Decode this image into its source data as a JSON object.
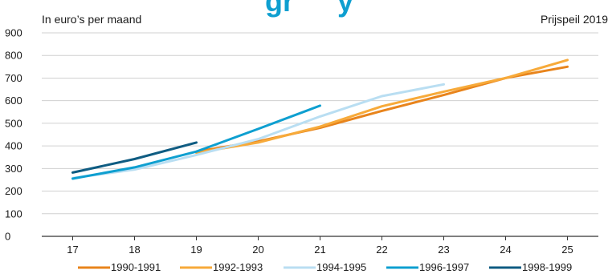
{
  "chart_data": {
    "type": "line",
    "subtitle_left": "In euro’s per maand",
    "subtitle_right": "Prijspeil 2019",
    "x_ticks": [
      17,
      18,
      19,
      20,
      21,
      22,
      23,
      24,
      25
    ],
    "y_ticks": [
      0,
      100,
      200,
      300,
      400,
      500,
      600,
      700,
      800,
      900
    ],
    "xlim": [
      16.5,
      25.5
    ],
    "ylim": [
      0,
      900
    ],
    "grid": "horizontal",
    "legend_position": "bottom",
    "series": [
      {
        "name": "1990-1991",
        "color": "#e8841c",
        "x": [
          19,
          20,
          21,
          22,
          23,
          24,
          25
        ],
        "y": [
          375,
          420,
          480,
          555,
          625,
          700,
          750
        ]
      },
      {
        "name": "1992-1993",
        "color": "#f7aa3a",
        "x": [
          19,
          20,
          21,
          22,
          23,
          24,
          25
        ],
        "y": [
          370,
          415,
          485,
          575,
          640,
          700,
          780
        ]
      },
      {
        "name": "1994-1995",
        "color": "#b9def2",
        "x": [
          17,
          18,
          19,
          20,
          21,
          22,
          23
        ],
        "y": [
          258,
          295,
          360,
          430,
          530,
          620,
          672
        ]
      },
      {
        "name": "1996-1997",
        "color": "#0e9fd0",
        "x": [
          17,
          18,
          19,
          20,
          21
        ],
        "y": [
          255,
          305,
          375,
          475,
          578
        ]
      },
      {
        "name": "1998-1999",
        "color": "#0f5c82",
        "x": [
          17,
          18,
          19
        ],
        "y": [
          282,
          342,
          415
        ]
      }
    ]
  }
}
